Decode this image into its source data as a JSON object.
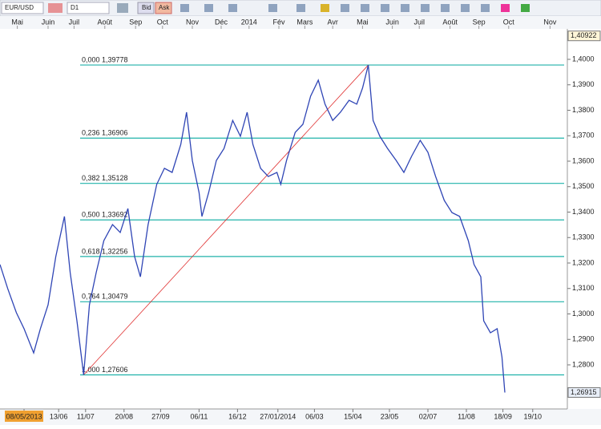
{
  "toolbar": {
    "symbol": "EUR/USD",
    "timeframe": "D1",
    "bid": "Bid",
    "ask": "Ask"
  },
  "chart_data": {
    "type": "line",
    "series": [
      {
        "name": "EUR/USD",
        "color": "#2f45b5",
        "x": [
          -25,
          -17,
          -8,
          0,
          10,
          17,
          25,
          33,
          42,
          48,
          55,
          62,
          68,
          75,
          83,
          92,
          100,
          108,
          115,
          121,
          129,
          138,
          146,
          154,
          163,
          169,
          175,
          182,
          185,
          192,
          200,
          208,
          217,
          225,
          232,
          238,
          246,
          254,
          263,
          267,
          273,
          282,
          290,
          298,
          306,
          313,
          321,
          329,
          338,
          346,
          352,
          358,
          363,
          370,
          378,
          387,
          395,
          403,
          412,
          420,
          428,
          437,
          445,
          453,
          462,
          468,
          475,
          478,
          485,
          492,
          497,
          500
        ],
        "values": [
          1.3194,
          1.31,
          1.3005,
          1.2942,
          1.2847,
          1.2942,
          1.3036,
          1.3225,
          1.3383,
          1.3162,
          1.2973,
          1.27606,
          1.3036,
          1.3162,
          1.3288,
          1.3351,
          1.332,
          1.3414,
          1.3225,
          1.3146,
          1.3351,
          1.3509,
          1.3572,
          1.3556,
          1.3666,
          1.3792,
          1.3603,
          1.3477,
          1.3383,
          1.3477,
          1.3603,
          1.365,
          1.376,
          1.3698,
          1.3792,
          1.3666,
          1.3572,
          1.354,
          1.3556,
          1.3509,
          1.3603,
          1.3713,
          1.3745,
          1.3855,
          1.3918,
          1.3824,
          1.376,
          1.3792,
          1.3839,
          1.3824,
          1.3887,
          1.39778,
          1.376,
          1.3698,
          1.365,
          1.3603,
          1.3556,
          1.3619,
          1.3682,
          1.3635,
          1.354,
          1.3446,
          1.3398,
          1.3383,
          1.3288,
          1.3194,
          1.3146,
          1.2973,
          1.2926,
          1.2942,
          1.2831,
          1.26915
        ]
      }
    ],
    "xlim": [
      -25,
      565
    ],
    "ylim": [
      1.26268,
      1.41197
    ],
    "xticks": [
      {
        "value": 0,
        "label": "08/05/2013"
      },
      {
        "value": 36,
        "label": "13/06"
      },
      {
        "value": 64,
        "label": "11/07"
      },
      {
        "value": 104,
        "label": "20/08"
      },
      {
        "value": 142,
        "label": "27/09"
      },
      {
        "value": 182,
        "label": "06/11"
      },
      {
        "value": 222,
        "label": "16/12"
      },
      {
        "value": 264,
        "label": "27/01/2014"
      },
      {
        "value": 302,
        "label": "06/03"
      },
      {
        "value": 342,
        "label": "15/04"
      },
      {
        "value": 380,
        "label": "23/05"
      },
      {
        "value": 420,
        "label": "02/07"
      },
      {
        "value": 460,
        "label": "11/08"
      },
      {
        "value": 498,
        "label": "18/09"
      },
      {
        "value": 529,
        "label": "19/10"
      }
    ],
    "month_ticks": [
      {
        "value": -7,
        "label": "Mai"
      },
      {
        "value": 25,
        "label": "Juin"
      },
      {
        "value": 52,
        "label": "Juil"
      },
      {
        "value": 84,
        "label": "Août"
      },
      {
        "value": 116,
        "label": "Sep"
      },
      {
        "value": 144,
        "label": "Oct"
      },
      {
        "value": 175,
        "label": "Nov"
      },
      {
        "value": 205,
        "label": "Déc"
      },
      {
        "value": 234,
        "label": "2014"
      },
      {
        "value": 265,
        "label": "Fév"
      },
      {
        "value": 292,
        "label": "Mars"
      },
      {
        "value": 321,
        "label": "Avr"
      },
      {
        "value": 352,
        "label": "Mai"
      },
      {
        "value": 383,
        "label": "Juin"
      },
      {
        "value": 411,
        "label": "Juil"
      },
      {
        "value": 443,
        "label": "Août"
      },
      {
        "value": 473,
        "label": "Sep"
      },
      {
        "value": 504,
        "label": "Oct"
      },
      {
        "value": 547,
        "label": "Nov"
      }
    ],
    "yticks": [
      {
        "value": 1.28,
        "label": "1,2800"
      },
      {
        "value": 1.29,
        "label": "1,2900"
      },
      {
        "value": 1.3,
        "label": "1,3000"
      },
      {
        "value": 1.31,
        "label": "1,3100"
      },
      {
        "value": 1.32,
        "label": "1,3200"
      },
      {
        "value": 1.33,
        "label": "1,3300"
      },
      {
        "value": 1.34,
        "label": "1,3400"
      },
      {
        "value": 1.35,
        "label": "1,3500"
      },
      {
        "value": 1.36,
        "label": "1,3600"
      },
      {
        "value": 1.37,
        "label": "1,3700"
      },
      {
        "value": 1.38,
        "label": "1,3800"
      },
      {
        "value": 1.39,
        "label": "1,3900"
      },
      {
        "value": 1.4,
        "label": "1,4000"
      }
    ],
    "price_markers": [
      {
        "value": 1.40922,
        "label": "1,40922"
      },
      {
        "value": 1.26915,
        "label": "1,26915"
      }
    ],
    "fibonacci": {
      "color": "#20b2aa",
      "start_x": 62,
      "end_x": 358,
      "levels": [
        {
          "value": 1.39778,
          "label": "0,000 1,39778"
        },
        {
          "value": 1.36906,
          "label": "0,236 1,36906"
        },
        {
          "value": 1.35128,
          "label": "0,382 1,35128"
        },
        {
          "value": 1.33692,
          "label": "0,500 1,33692"
        },
        {
          "value": 1.32256,
          "label": "0,618 1,32256"
        },
        {
          "value": 1.30479,
          "label": "0,764 1,30479"
        },
        {
          "value": 1.27606,
          "label": "1,000 1,27606"
        }
      ]
    }
  }
}
